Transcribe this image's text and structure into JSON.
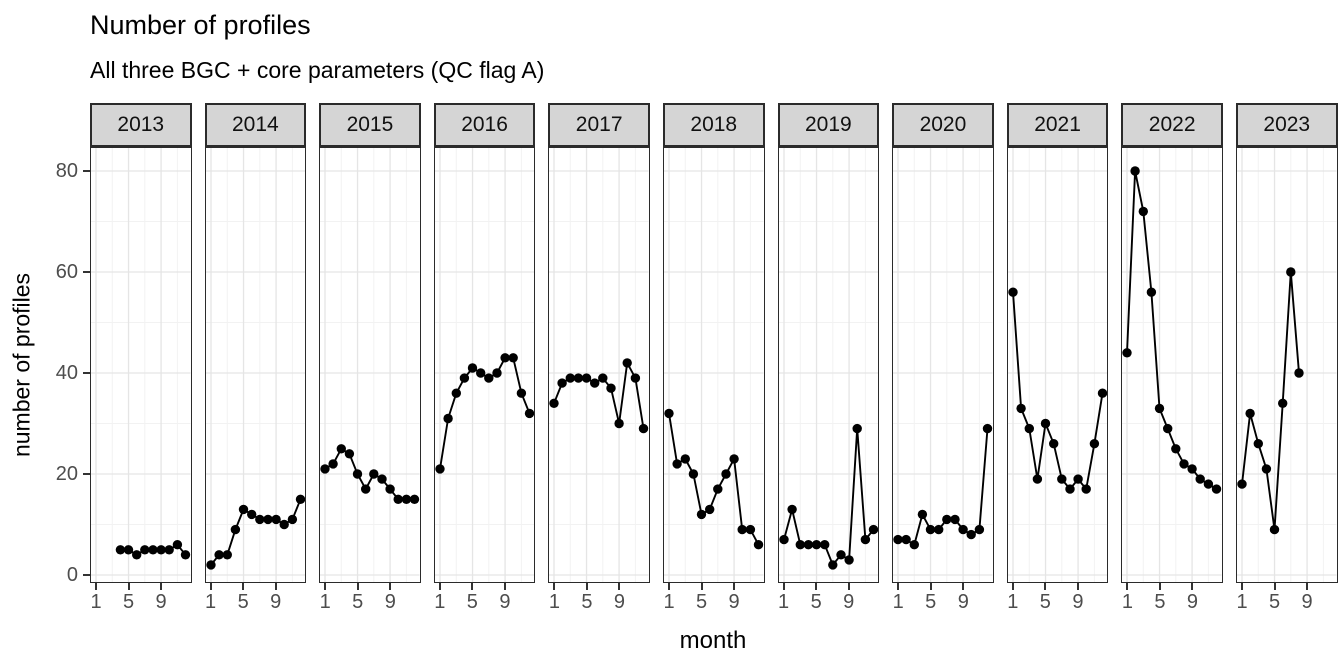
{
  "chart_data": {
    "type": "line",
    "title": "Number of profiles",
    "subtitle": "All three BGC + core parameters (QC flag A)",
    "xlabel": "month",
    "ylabel": "number of profiles",
    "ylim": [
      0,
      80
    ],
    "y_ticks": [
      0,
      20,
      40,
      60,
      80
    ],
    "x_ticks": [
      1,
      5,
      9
    ],
    "grid": true,
    "legend": "none",
    "marker": "filled-circle",
    "facets": [
      {
        "year": "2013",
        "start_month": 4,
        "values": [
          5,
          5,
          4,
          5,
          5,
          5,
          5,
          6,
          4
        ]
      },
      {
        "year": "2014",
        "start_month": 1,
        "values": [
          2,
          4,
          4,
          9,
          13,
          12,
          11,
          11,
          11,
          10,
          11,
          15
        ]
      },
      {
        "year": "2015",
        "start_month": 1,
        "values": [
          21,
          22,
          25,
          24,
          20,
          17,
          20,
          19,
          17,
          15,
          15,
          15
        ]
      },
      {
        "year": "2016",
        "start_month": 1,
        "values": [
          21,
          31,
          36,
          39,
          41,
          40,
          39,
          40,
          43,
          43,
          36,
          32
        ]
      },
      {
        "year": "2017",
        "start_month": 1,
        "values": [
          34,
          38,
          39,
          39,
          39,
          38,
          39,
          37,
          30,
          42,
          39,
          29
        ]
      },
      {
        "year": "2018",
        "start_month": 1,
        "values": [
          32,
          22,
          23,
          20,
          12,
          13,
          17,
          20,
          23,
          9,
          9,
          6
        ]
      },
      {
        "year": "2019",
        "start_month": 1,
        "values": [
          7,
          13,
          6,
          6,
          6,
          6,
          2,
          4,
          3,
          29,
          7,
          9
        ]
      },
      {
        "year": "2020",
        "start_month": 1,
        "values": [
          7,
          7,
          6,
          12,
          9,
          9,
          11,
          11,
          9,
          8,
          9,
          29
        ]
      },
      {
        "year": "2021",
        "start_month": 1,
        "values": [
          56,
          33,
          29,
          19,
          30,
          26,
          19,
          17,
          19,
          17,
          26,
          36
        ]
      },
      {
        "year": "2022",
        "start_month": 1,
        "values": [
          44,
          80,
          72,
          56,
          33,
          29,
          25,
          22,
          21,
          19,
          18,
          17
        ]
      },
      {
        "year": "2023",
        "start_month": 1,
        "values": [
          18,
          32,
          26,
          21,
          9,
          34,
          60,
          40
        ]
      }
    ]
  },
  "colors": {
    "point": "#000000",
    "line": "#000000",
    "strip_fill": "#d5d5d5",
    "strip_border": "#2b2b2b",
    "panel_border": "#2b2b2b",
    "grid_major": "#e5e5e5",
    "grid_minor": "#f2f2f2",
    "tick_label": "#4d4d4d",
    "tick_mark": "#333333",
    "text": "#000000"
  }
}
